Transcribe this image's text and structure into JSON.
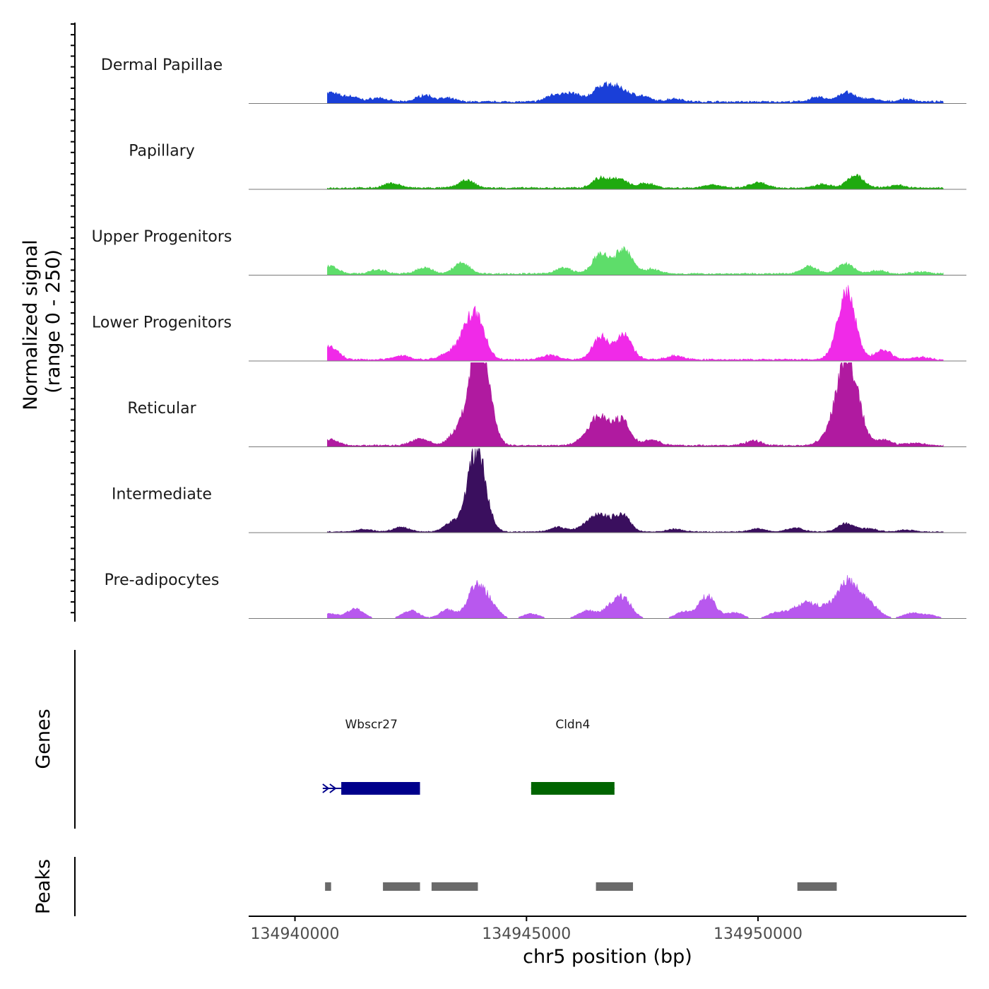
{
  "chart_data": {
    "type": "area",
    "title": "",
    "xlabel": "chr5 position (bp)",
    "ylabel": "Normalized signal",
    "ylabel_range": "(range 0 - 250)",
    "xlim": [
      134939000,
      134954500
    ],
    "ylim": [
      0,
      250
    ],
    "x_ticks": [
      {
        "value": 134940000,
        "label": "134940000"
      },
      {
        "value": 134945000,
        "label": "134945000"
      },
      {
        "value": 134950000,
        "label": "134950000"
      }
    ],
    "data_start": 134940700,
    "data_end": 134954000,
    "peak_width": 250,
    "series": [
      {
        "name": "Dermal Papillae",
        "color": "#1a3fd8",
        "baseline": 6,
        "bumps": [
          [
            134940750,
            28
          ],
          [
            134941200,
            16
          ],
          [
            134941800,
            12
          ],
          [
            134942800,
            20
          ],
          [
            134943300,
            10
          ],
          [
            134945600,
            22
          ],
          [
            134946000,
            24
          ],
          [
            134946550,
            30
          ],
          [
            134946800,
            36
          ],
          [
            134947100,
            28
          ],
          [
            134947500,
            16
          ],
          [
            134948200,
            10
          ],
          [
            134951300,
            14
          ],
          [
            134951900,
            28
          ],
          [
            134952400,
            10
          ],
          [
            134953200,
            8
          ]
        ]
      },
      {
        "name": "Papillary",
        "color": "#1faa0f",
        "baseline": 5,
        "bumps": [
          [
            134942100,
            14
          ],
          [
            134943700,
            22
          ],
          [
            134946600,
            30
          ],
          [
            134947000,
            26
          ],
          [
            134947600,
            14
          ],
          [
            134949000,
            10
          ],
          [
            134950000,
            16
          ],
          [
            134951400,
            12
          ],
          [
            134952100,
            38
          ],
          [
            134953000,
            8
          ]
        ]
      },
      {
        "name": "Upper Progenitors",
        "color": "#5edd6a",
        "baseline": 5,
        "bumps": [
          [
            134940750,
            24
          ],
          [
            134941800,
            12
          ],
          [
            134942800,
            18
          ],
          [
            134943600,
            32
          ],
          [
            134945800,
            18
          ],
          [
            134946600,
            58
          ],
          [
            134947100,
            74
          ],
          [
            134947700,
            14
          ],
          [
            134951100,
            22
          ],
          [
            134951900,
            30
          ],
          [
            134952600,
            10
          ],
          [
            134953500,
            6
          ]
        ]
      },
      {
        "name": "Lower Progenitors",
        "color": "#f02ae8",
        "baseline": 5,
        "bumps": [
          [
            134940750,
            40
          ],
          [
            134942300,
            12
          ],
          [
            134943300,
            18
          ],
          [
            134943700,
            78
          ],
          [
            134943950,
            104
          ],
          [
            134945500,
            14
          ],
          [
            134946600,
            68
          ],
          [
            134947100,
            74
          ],
          [
            134948200,
            12
          ],
          [
            134951800,
            60
          ],
          [
            134951950,
            158
          ],
          [
            134952700,
            30
          ],
          [
            134953500,
            8
          ]
        ]
      },
      {
        "name": "Reticular",
        "color": "#b01aa0",
        "baseline": 5,
        "bumps": [
          [
            134940750,
            18
          ],
          [
            134942700,
            22
          ],
          [
            134943500,
            40
          ],
          [
            134943900,
            228
          ],
          [
            134944100,
            160
          ],
          [
            134946300,
            28
          ],
          [
            134946600,
            84
          ],
          [
            134947050,
            78
          ],
          [
            134947700,
            18
          ],
          [
            134949900,
            14
          ],
          [
            134951500,
            28
          ],
          [
            134951850,
            226
          ],
          [
            134952100,
            120
          ],
          [
            134952700,
            18
          ],
          [
            134953400,
            8
          ]
        ]
      },
      {
        "name": "Intermediate",
        "color": "#3a0f5e",
        "baseline": 3,
        "bumps": [
          [
            134941500,
            8
          ],
          [
            134942300,
            14
          ],
          [
            134943400,
            28
          ],
          [
            134943850,
            140
          ],
          [
            134944000,
            134
          ],
          [
            134945700,
            14
          ],
          [
            134946300,
            20
          ],
          [
            134946600,
            46
          ],
          [
            134947050,
            54
          ],
          [
            134948200,
            8
          ],
          [
            134950000,
            10
          ],
          [
            134950800,
            12
          ],
          [
            134951900,
            26
          ],
          [
            134952400,
            10
          ],
          [
            134953200,
            6
          ]
        ]
      },
      {
        "name": "Pre-adipocytes",
        "color": "#b858ee",
        "baseline": 0,
        "bumps": [
          [
            134940750,
            14
          ],
          [
            134941300,
            30
          ],
          [
            134942500,
            24
          ],
          [
            134943300,
            26
          ],
          [
            134943900,
            90
          ],
          [
            134944200,
            46
          ],
          [
            134945100,
            14
          ],
          [
            134946300,
            24
          ],
          [
            134946800,
            30
          ],
          [
            134947100,
            58
          ],
          [
            134948400,
            20
          ],
          [
            134948900,
            68
          ],
          [
            134949500,
            18
          ],
          [
            134950400,
            18
          ],
          [
            134950800,
            24
          ],
          [
            134951100,
            40
          ],
          [
            134951500,
            36
          ],
          [
            134951900,
            98
          ],
          [
            134952200,
            54
          ],
          [
            134952500,
            28
          ],
          [
            134953300,
            16
          ],
          [
            134953700,
            10
          ]
        ]
      }
    ],
    "genes": [
      {
        "name": "Wbscr27",
        "color": "#00008b",
        "strand": "+",
        "start": 134940600,
        "end": 134942700,
        "cds_start": 134941000,
        "cds_end": 134942700
      },
      {
        "name": "Cldn4",
        "color": "#006400",
        "strand": "+",
        "start": 134945100,
        "end": 134946900,
        "cds_start": 134945100,
        "cds_end": 134946900
      }
    ],
    "peaks": [
      {
        "start": 134940650,
        "end": 134940780
      },
      {
        "start": 134941900,
        "end": 134942700
      },
      {
        "start": 134942950,
        "end": 134943950
      },
      {
        "start": 134946500,
        "end": 134947300
      },
      {
        "start": 134950850,
        "end": 134951700
      }
    ]
  },
  "panels": {
    "genes_title": "Genes",
    "peaks_title": "Peaks"
  },
  "colors": {
    "baseline": "#7a7a7a",
    "axis": "#000000",
    "peak": "#6a6a6a"
  }
}
